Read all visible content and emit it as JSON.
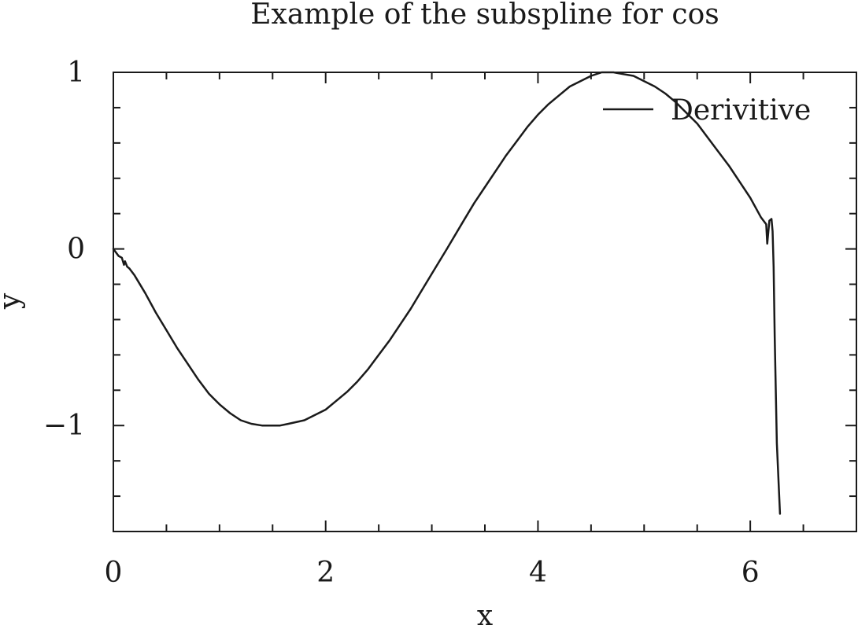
{
  "chart_data": {
    "type": "line",
    "title": "Example of the subspline for cos",
    "xlabel": "x",
    "ylabel": "y",
    "xlim": [
      0,
      7
    ],
    "ylim": [
      -1.6,
      1
    ],
    "x_ticks": [
      0,
      2,
      4,
      6
    ],
    "x_tick_labels": [
      "0",
      "2",
      "4",
      "6"
    ],
    "x_minor_step": 0.5,
    "y_ticks": [
      1,
      0,
      -1
    ],
    "y_tick_labels": [
      "1",
      "0",
      "−1"
    ],
    "y_minor_step": 0.2,
    "grid": false,
    "legend_position": "top-right",
    "series": [
      {
        "name": "Derivitive",
        "color": "#1a1a1a",
        "x": [
          0.0,
          0.05,
          0.08,
          0.1,
          0.11,
          0.13,
          0.15,
          0.2,
          0.3,
          0.4,
          0.5,
          0.6,
          0.7,
          0.8,
          0.9,
          1.0,
          1.1,
          1.2,
          1.3,
          1.4,
          1.5,
          1.571,
          1.65,
          1.8,
          1.9,
          2.0,
          2.1,
          2.2,
          2.3,
          2.4,
          2.5,
          2.6,
          2.7,
          2.8,
          2.9,
          3.0,
          3.142,
          3.3,
          3.4,
          3.5,
          3.6,
          3.7,
          3.8,
          3.9,
          4.0,
          4.1,
          4.2,
          4.3,
          4.4,
          4.5,
          4.6,
          4.712,
          4.8,
          4.9,
          5.0,
          5.1,
          5.2,
          5.3,
          5.4,
          5.5,
          5.6,
          5.7,
          5.8,
          5.9,
          6.0,
          6.1,
          6.15,
          6.16,
          6.18,
          6.2,
          6.21,
          6.22,
          6.23,
          6.25,
          6.28
        ],
        "y": [
          0.0,
          -0.04,
          -0.05,
          -0.09,
          -0.07,
          -0.1,
          -0.11,
          -0.15,
          -0.25,
          -0.36,
          -0.46,
          -0.56,
          -0.65,
          -0.74,
          -0.82,
          -0.88,
          -0.93,
          -0.97,
          -0.99,
          -1.0,
          -1.0,
          -1.0,
          -0.99,
          -0.97,
          -0.94,
          -0.91,
          -0.86,
          -0.81,
          -0.75,
          -0.68,
          -0.6,
          -0.52,
          -0.43,
          -0.34,
          -0.24,
          -0.14,
          0.0,
          0.16,
          0.26,
          0.35,
          0.44,
          0.53,
          0.61,
          0.69,
          0.76,
          0.82,
          0.87,
          0.92,
          0.95,
          0.98,
          1.0,
          1.0,
          0.99,
          0.98,
          0.95,
          0.92,
          0.88,
          0.83,
          0.77,
          0.71,
          0.63,
          0.55,
          0.47,
          0.38,
          0.29,
          0.18,
          0.14,
          0.03,
          0.16,
          0.17,
          0.1,
          -0.1,
          -0.5,
          -1.1,
          -1.5
        ]
      }
    ]
  }
}
